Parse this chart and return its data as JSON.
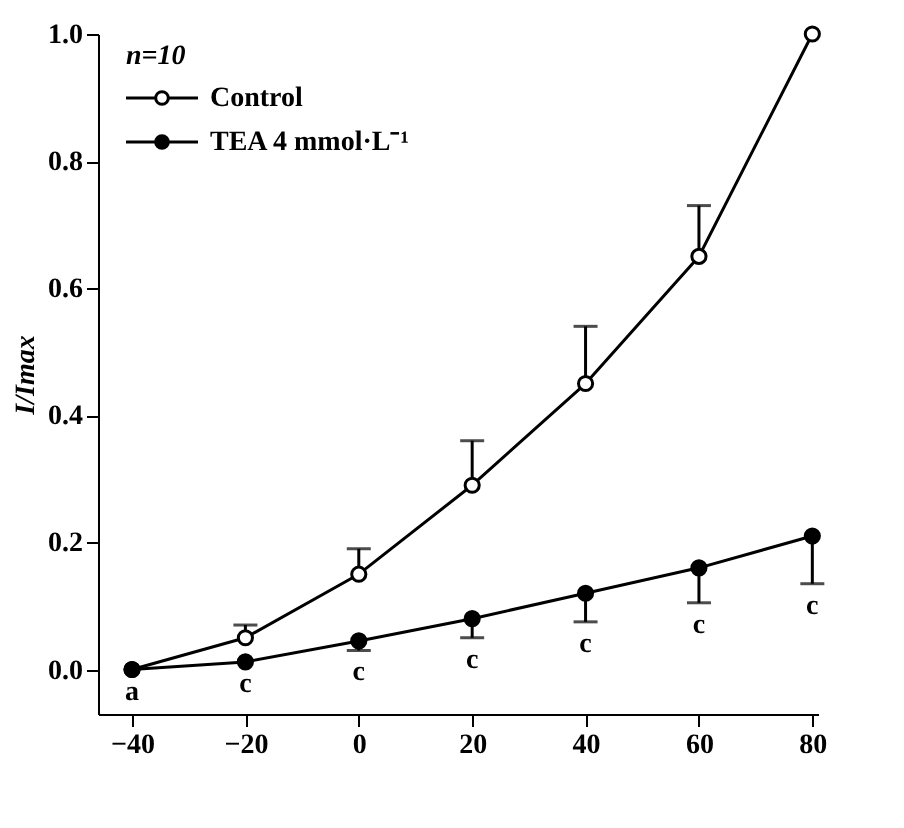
{
  "chart_data": {
    "type": "line",
    "ylabel": "I/Imax",
    "x": [
      -40,
      -20,
      0,
      20,
      40,
      60,
      80
    ],
    "series": [
      {
        "name": "Control",
        "color": "#000000",
        "values": [
          0,
          0.05,
          0.15,
          0.29,
          0.45,
          0.65,
          1.0
        ],
        "errors": [
          null,
          [
            0.05,
            0.07
          ],
          [
            0.15,
            0.19
          ],
          [
            0.29,
            0.36
          ],
          [
            0.45,
            0.54
          ],
          [
            0.65,
            0.73
          ],
          null
        ]
      },
      {
        "name": "TEA  4 mmol·L⁻¹",
        "color": "#000000",
        "values": [
          0,
          0.012,
          0.045,
          0.08,
          0.12,
          0.16,
          0.21
        ],
        "errors": [
          null,
          null,
          [
            0.03,
            0.045
          ],
          [
            0.05,
            0.08
          ],
          [
            0.075,
            0.12
          ],
          [
            0.105,
            0.16
          ],
          [
            0.135,
            0.21
          ]
        ]
      }
    ],
    "xlim": [
      -46,
      81
    ],
    "xticks": [
      -40,
      -20,
      0,
      20,
      40,
      60,
      80
    ],
    "ylim": [
      -0.07,
      1.0
    ],
    "yticks": [
      {
        "value": 0,
        "label": "0.0"
      },
      0.2,
      0.4,
      0.6,
      0.8,
      {
        "value": 1,
        "label": "1.0"
      }
    ],
    "annotations": [
      "n=10",
      "a",
      "c",
      "c",
      "c",
      "c",
      "c",
      "c"
    ],
    "marker": "circle",
    "line_style": "solid",
    "grid": false,
    "legend": "top left"
  }
}
